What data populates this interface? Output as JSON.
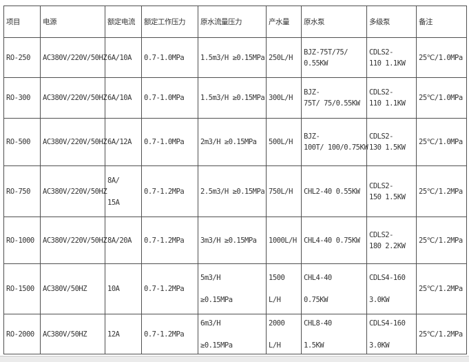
{
  "colors": {
    "page_background": "#ffffff",
    "table_border": "#4f4f4f",
    "text": "#333333",
    "bottom_bar": "#ebebeb"
  },
  "table": {
    "headers": [
      "项目",
      "电源",
      "额定电流",
      "额定工作压力",
      "原水流量压力",
      "产水量",
      "原水泵",
      "多级泵",
      "备注"
    ],
    "rows": [
      [
        "RO-250",
        "AC380V/220V/50HZ",
        "6A/10A",
        "0.7-1.0MPa",
        "1.5m3/H ≥0.15MPa",
        "250L/H",
        "BJZ-75T/75/\n0.55KW",
        "CDLS2-\n110 1.1KW",
        "25℃/1.0MPa"
      ],
      [
        "RO-300",
        "AC380V/220V/50HZ",
        "6A/10A",
        "0.7-1.0MPa",
        "1.5m3/H ≥0.15MPa",
        "300L/H",
        "BJZ-\n75T/ 75/0.55KW",
        "CDLS2-\n110 1.1KW",
        "25℃/1.0MPa"
      ],
      [
        "RO-500",
        "AC380V/220V/50HZ",
        "6A/12A",
        "0.7-1.0MPa",
        "2m3/H ≥0.15MPa",
        "500L/H",
        "BJZ-\n100T/ 100/0.75KW",
        "CDLS2-\n130 1.5KW",
        "25℃/1.0MPa"
      ],
      [
        "RO-750",
        "AC380V/220V/50HZ",
        "8A/\n\n15A",
        "0.7-1.2MPa",
        "2.5m3/H ≥0.15MPa",
        "750L/H",
        "CHL2-40 0.55KW",
        "CDLS2-\n150 1.5KW",
        "25℃/1.2MPa"
      ],
      [
        "RO-1000",
        "AC380V/220V/50HZ",
        "8A/20A",
        "0.7-1.2MPa",
        "3m3/H ≥0.15MPa",
        "1000L/H",
        "CHL4-40 0.75KW",
        "CDLS2-\n180 2.2KW",
        "25℃/1.2MPa"
      ],
      [
        "RO-1500",
        "AC380V/50HZ",
        "10A",
        "0.7-1.2MPa",
        "5m3/H\n\n≥0.15MPa",
        "1500\n\nL/H",
        "CHL4-40\n\n0.75KW",
        "CDLS4-160\n\n3.0KW",
        "25℃/1.2MPa"
      ],
      [
        "RO-2000",
        "AC380V/50HZ",
        "12A",
        "0.7-1.2MPa",
        "6m3/H\n\n≥0.15MPa",
        "2000\n\nL/H",
        "CHL8-40\n\n1.5KW",
        "CDLS4-160\n\n3.0KW",
        "25℃/1.2MPa"
      ]
    ]
  }
}
